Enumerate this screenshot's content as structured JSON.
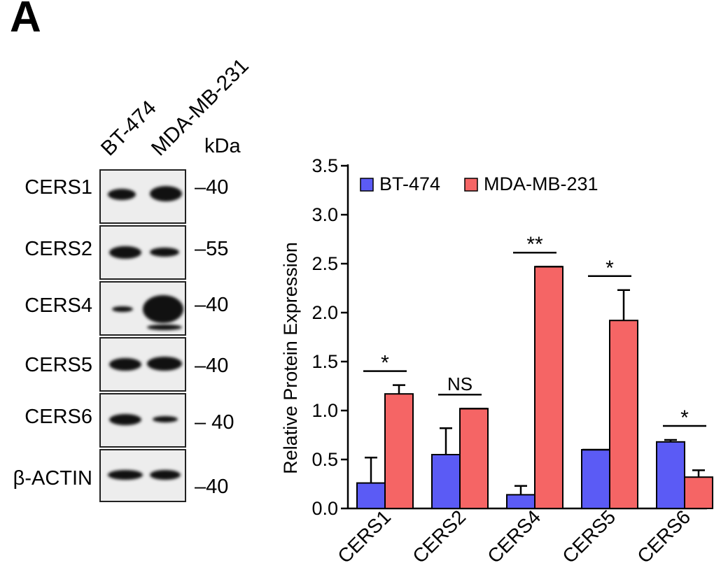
{
  "panel_label": "A",
  "blot": {
    "lanes": [
      "BT-474",
      "MDA-MB-231"
    ],
    "marker_header": "kDa",
    "rows": [
      {
        "name": "CERS1",
        "marker": "–40"
      },
      {
        "name": "CERS2",
        "marker": "–55"
      },
      {
        "name": "CERS4",
        "marker": "–40"
      },
      {
        "name": "CERS5",
        "marker": "–40"
      },
      {
        "name": "CERS6",
        "marker": "– 40"
      },
      {
        "name": "β-ACTIN",
        "marker": "–40"
      }
    ]
  },
  "chart_data": {
    "type": "bar",
    "categories": [
      "CERS1",
      "CERS2",
      "CERS4",
      "CERS5",
      "CERS6"
    ],
    "series": [
      {
        "name": "BT-474",
        "color": "#5b5bf5",
        "values": [
          0.26,
          0.55,
          0.14,
          0.6,
          0.68
        ],
        "errors": [
          0.26,
          0.27,
          0.09,
          0.0,
          0.02
        ]
      },
      {
        "name": "MDA-MB-231",
        "color": "#f56565",
        "values": [
          1.17,
          1.02,
          2.47,
          1.92,
          0.32
        ],
        "errors": [
          0.09,
          0.0,
          0.0,
          0.31,
          0.07
        ]
      }
    ],
    "significance": [
      "*",
      "NS",
      "**",
      "*",
      "*"
    ],
    "ylabel": "Relative Protein Expression",
    "xlabel": "",
    "ylim": [
      0,
      3.5
    ],
    "yticks": [
      "0.0",
      "0.5",
      "1.0",
      "1.5",
      "2.0",
      "2.5",
      "3.0",
      "3.5"
    ],
    "legend_position": "top-left"
  }
}
